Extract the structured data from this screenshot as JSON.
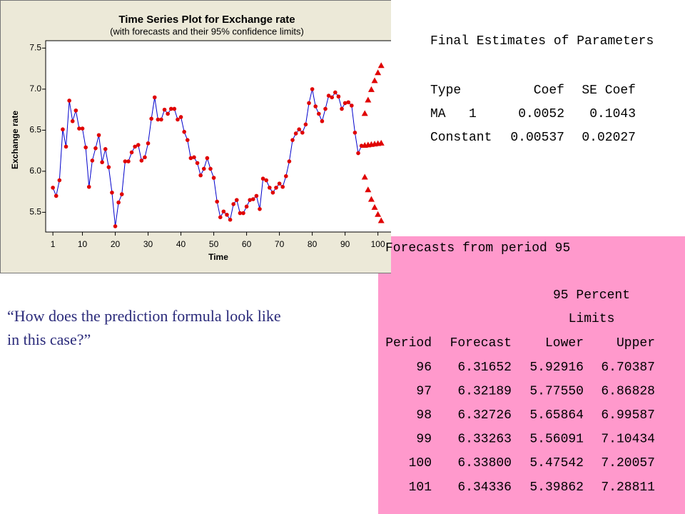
{
  "chart_data": {
    "type": "line",
    "title": "Time Series Plot for Exchange rate",
    "subtitle": "(with forecasts and their 95% confidence limits)",
    "x_label": "Time",
    "y_label": "Exchange rate",
    "x": [
      1,
      2,
      3,
      4,
      5,
      6,
      7,
      8,
      9,
      10,
      11,
      12,
      13,
      14,
      15,
      16,
      17,
      18,
      19,
      20,
      21,
      22,
      23,
      24,
      25,
      26,
      27,
      28,
      29,
      30,
      31,
      32,
      33,
      34,
      35,
      36,
      37,
      38,
      39,
      40,
      41,
      42,
      43,
      44,
      45,
      46,
      47,
      48,
      49,
      50,
      51,
      52,
      53,
      54,
      55,
      56,
      57,
      58,
      59,
      60,
      61,
      62,
      63,
      64,
      65,
      66,
      67,
      68,
      69,
      70,
      71,
      72,
      73,
      74,
      75,
      76,
      77,
      78,
      79,
      80,
      81,
      82,
      83,
      84,
      85,
      86,
      87,
      88,
      89,
      90,
      91,
      92,
      93,
      94,
      95
    ],
    "values": [
      5.8,
      5.7,
      5.89,
      6.51,
      6.3,
      6.86,
      6.61,
      6.74,
      6.52,
      6.52,
      6.29,
      5.81,
      6.13,
      6.28,
      6.44,
      6.11,
      6.27,
      6.05,
      5.74,
      5.33,
      5.62,
      5.72,
      6.12,
      6.12,
      6.23,
      6.3,
      6.32,
      6.13,
      6.17,
      6.34,
      6.64,
      6.9,
      6.63,
      6.63,
      6.75,
      6.7,
      6.76,
      6.76,
      6.63,
      6.66,
      6.48,
      6.38,
      6.16,
      6.17,
      6.1,
      5.95,
      6.03,
      6.16,
      6.03,
      5.92,
      5.63,
      5.44,
      5.51,
      5.47,
      5.41,
      5.6,
      5.65,
      5.49,
      5.49,
      5.57,
      5.65,
      5.66,
      5.7,
      5.54,
      5.91,
      5.89,
      5.8,
      5.74,
      5.8,
      5.85,
      5.81,
      5.94,
      6.12,
      6.38,
      6.46,
      6.51,
      6.47,
      6.57,
      6.83,
      7.0,
      6.79,
      6.7,
      6.61,
      6.76,
      6.92,
      6.9,
      6.96,
      6.91,
      6.76,
      6.83,
      6.84,
      6.8,
      6.47,
      6.22,
      6.31
    ],
    "line_color": "#0000cc",
    "marker_color": "#e00000",
    "forecast_color": "#e00000",
    "xlim": [
      -1.2,
      106.6
    ],
    "xticks": [
      1,
      10,
      20,
      30,
      40,
      50,
      60,
      70,
      80,
      90,
      100
    ],
    "ylim": [
      5.26,
      7.59
    ],
    "yticks": [
      5.5,
      {
        "value": 6.0,
        "label": "6.0"
      },
      6.5,
      {
        "value": 7.0,
        "label": "7.0"
      },
      7.5
    ]
  },
  "parameters": {
    "title": "Final Estimates of Parameters",
    "columns": [
      "Type",
      "Coef",
      "SE Coef"
    ],
    "rows": [
      [
        "MA   1",
        "0.0052",
        "0.1043"
      ],
      [
        "Constant",
        "0.00537",
        "0.02027"
      ]
    ]
  },
  "forecasts": {
    "title": "Forecasts from period 95",
    "group_header": [
      "95 Percent",
      "Limits"
    ],
    "columns": [
      "Period",
      "Forecast",
      "Lower",
      "Upper"
    ],
    "rows": [
      [
        "96",
        "6.31652",
        "5.92916",
        "6.70387"
      ],
      [
        "97",
        "6.32189",
        "5.77550",
        "6.86828"
      ],
      [
        "98",
        "6.32726",
        "5.65864",
        "6.99587"
      ],
      [
        "99",
        "6.33263",
        "5.56091",
        "7.10434"
      ],
      [
        "100",
        "6.33800",
        "5.47542",
        "7.20057"
      ],
      [
        "101",
        "6.34336",
        "5.39862",
        "7.28811"
      ]
    ]
  },
  "question": [
    "“How does the prediction formula look like",
    "in this case?”"
  ]
}
